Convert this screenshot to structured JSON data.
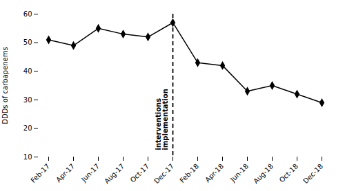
{
  "chart_data": {
    "type": "line",
    "categories": [
      "Feb-17",
      "Apr-17",
      "Jun-17",
      "Aug-17",
      "Oct-17",
      "Dec-17",
      "Feb-18",
      "Apr-18",
      "Jun-18",
      "Aug-18",
      "Oct-18",
      "Dec-18"
    ],
    "values": [
      51,
      49,
      55,
      53,
      52,
      57,
      43,
      42,
      33,
      35,
      32,
      29
    ],
    "color": "#000000",
    "marker": "diamond",
    "line_style": "solid",
    "ylabel": "DDDs of carbapenems",
    "ylim": [
      10,
      60
    ],
    "yticks": [
      10,
      20,
      30,
      40,
      50,
      60
    ],
    "grid": false,
    "vline": {
      "x": "Dec-17",
      "line_style": "dashed"
    },
    "annotation": "interventions\nimplementation"
  }
}
